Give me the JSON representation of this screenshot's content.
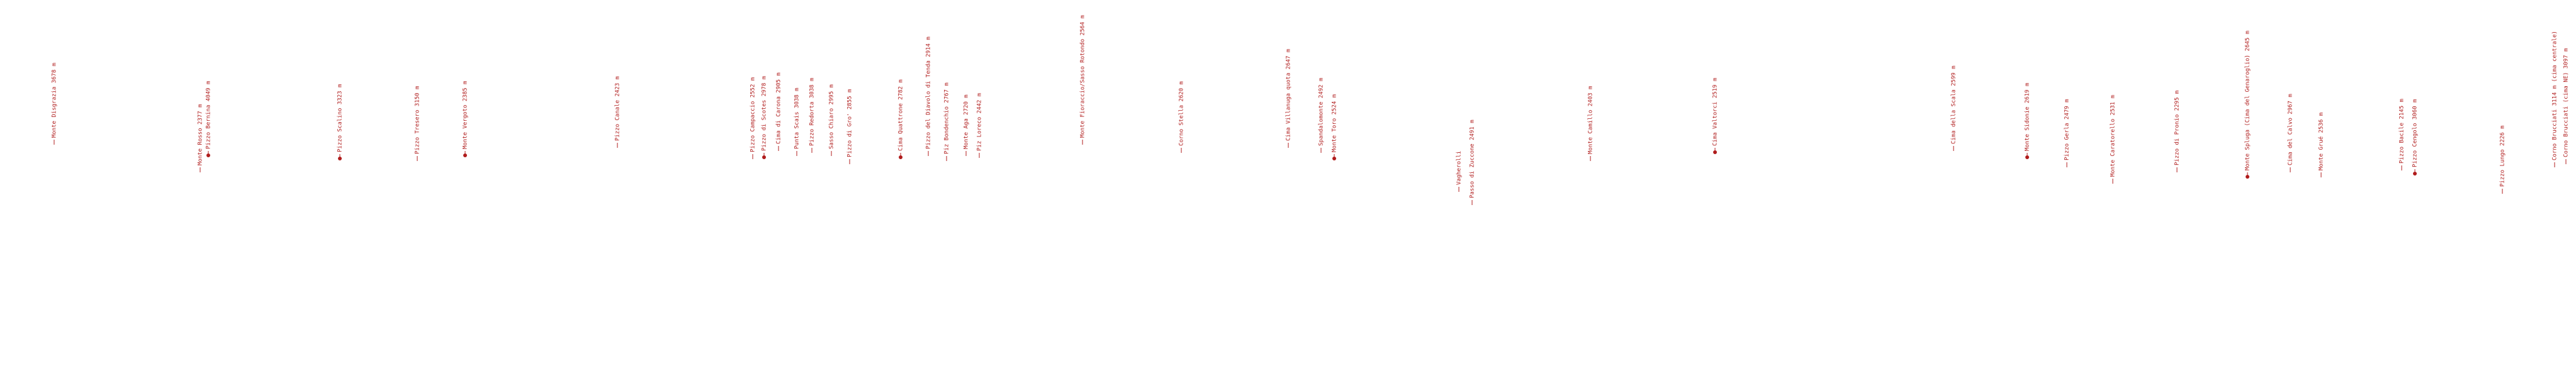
{
  "labels": [
    "Monte Disgrazia 3678 m",
    "Monte Rosso 2377 m",
    "Pizzo Bernina 4049 m",
    "Pizzo Scalino 3323 m",
    "Pizzo Tresero 3150 m",
    "Monte Vergoto 2385 m",
    "Pizzo Canale 2423 m",
    "Pizzo Campaccio 2552 m",
    "Pizzo di Scotes 2978 m",
    "Cima di Carona 2905 m",
    "Punta Scais 3038 m",
    "Pizzo Redorta 3038 m",
    "Sasso Chiaro 2995 m",
    "Pizzo di Gro' 2855 m",
    "Cima Quattrone 2782 m",
    "Pizzo del Diavolo di Tenda 2914 m",
    "Piz Bondenchio 2767 m",
    "Monte Aga 2720 m",
    "Piz Loreco 2442 m",
    "Monte Fioraccio/Sasso Rotondo 2564 m",
    "Corno Stella 2620 m",
    "Cima Villanuga quota 2647 m",
    "Spandalomonte 2492 m",
    "Monte Toro 2524 m",
    "Vagherolli",
    "Passo di Zuccone 2491 m",
    "Monte Camillo 2403 m",
    "Cima Valtorci 2519 m",
    "Cima della Scala 2599 m",
    "Monte Sidonie 2619 m",
    "Pizzo Gerla 2479 m",
    "Monte Caratorello 2531 m",
    "Pizzo di Pronio 2295 m",
    "Monte Spluga (Cima del Genaroglio) 2645 m",
    "Cima del Calvo 2967 m",
    "Monte Grué 2536 m",
    "Pizzo Bacile 2145 m",
    "Pizzo Cengolo 3060 m",
    "Pizzo Lungo 2226 m",
    "Corno Brucciati 3114 m (cima centrale)",
    "Corno Brucciati (cima NE) 3097 m"
  ]
}
